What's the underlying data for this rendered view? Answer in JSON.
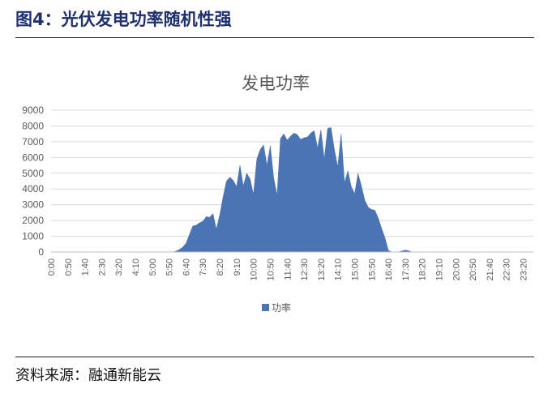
{
  "figure": {
    "title": "图4：光伏发电功率随机性强",
    "source": "资料来源：融通新能云"
  },
  "colors": {
    "series": "#4a74b4",
    "grid": "#d9d9d9",
    "axis_text": "#595959",
    "title_blue": "#1f2f6e"
  },
  "chart_data": {
    "type": "area",
    "title": "发电功率",
    "xlabel": "",
    "ylabel": "",
    "ylim": [
      0,
      9000
    ],
    "yticks": [
      0,
      1000,
      2000,
      3000,
      4000,
      5000,
      6000,
      7000,
      8000,
      9000
    ],
    "xticks": [
      "0:00",
      "0:50",
      "1:40",
      "2:30",
      "3:20",
      "4:10",
      "5:00",
      "5:50",
      "6:40",
      "7:30",
      "8:20",
      "9:10",
      "10:00",
      "10:50",
      "11:40",
      "12:30",
      "13:20",
      "14:10",
      "15:00",
      "15:50",
      "16:40",
      "17:30",
      "18:20",
      "19:10",
      "20:00",
      "20:50",
      "21:40",
      "22:30",
      "23:20"
    ],
    "grid": true,
    "legend_position": "bottom",
    "series": [
      {
        "name": "功率",
        "points": [
          [
            "0:00",
            0
          ],
          [
            "6:00",
            0
          ],
          [
            "6:10",
            50
          ],
          [
            "6:20",
            150
          ],
          [
            "6:30",
            300
          ],
          [
            "6:40",
            550
          ],
          [
            "6:50",
            1100
          ],
          [
            "7:00",
            1650
          ],
          [
            "7:10",
            1700
          ],
          [
            "7:20",
            1850
          ],
          [
            "7:30",
            1950
          ],
          [
            "7:40",
            2250
          ],
          [
            "7:50",
            2200
          ],
          [
            "8:00",
            2450
          ],
          [
            "8:10",
            1450
          ],
          [
            "8:20",
            2350
          ],
          [
            "8:30",
            3500
          ],
          [
            "8:40",
            4500
          ],
          [
            "8:50",
            4750
          ],
          [
            "9:00",
            4550
          ],
          [
            "9:10",
            4150
          ],
          [
            "9:20",
            5500
          ],
          [
            "9:30",
            4200
          ],
          [
            "9:40",
            5000
          ],
          [
            "9:50",
            4650
          ],
          [
            "10:00",
            3650
          ],
          [
            "10:10",
            5900
          ],
          [
            "10:20",
            6500
          ],
          [
            "10:30",
            6800
          ],
          [
            "10:40",
            5500
          ],
          [
            "10:50",
            6750
          ],
          [
            "11:00",
            4700
          ],
          [
            "11:10",
            3600
          ],
          [
            "11:20",
            7200
          ],
          [
            "11:30",
            7500
          ],
          [
            "11:40",
            7100
          ],
          [
            "11:50",
            7350
          ],
          [
            "12:00",
            7550
          ],
          [
            "12:10",
            7450
          ],
          [
            "12:20",
            7150
          ],
          [
            "12:30",
            7250
          ],
          [
            "12:40",
            7300
          ],
          [
            "12:50",
            7550
          ],
          [
            "13:00",
            7700
          ],
          [
            "13:10",
            6600
          ],
          [
            "13:20",
            7750
          ],
          [
            "13:30",
            5900
          ],
          [
            "13:40",
            7850
          ],
          [
            "13:50",
            7900
          ],
          [
            "14:00",
            6500
          ],
          [
            "14:10",
            5400
          ],
          [
            "14:20",
            7500
          ],
          [
            "14:30",
            4400
          ],
          [
            "14:40",
            5150
          ],
          [
            "14:50",
            4150
          ],
          [
            "15:00",
            3700
          ],
          [
            "15:10",
            5000
          ],
          [
            "15:20",
            4200
          ],
          [
            "15:30",
            3300
          ],
          [
            "15:40",
            2850
          ],
          [
            "15:50",
            2700
          ],
          [
            "16:00",
            2650
          ],
          [
            "16:10",
            2150
          ],
          [
            "16:20",
            1500
          ],
          [
            "16:30",
            900
          ],
          [
            "16:40",
            100
          ],
          [
            "16:50",
            0
          ],
          [
            "17:10",
            0
          ],
          [
            "17:20",
            60
          ],
          [
            "17:30",
            120
          ],
          [
            "17:40",
            80
          ],
          [
            "17:50",
            0
          ],
          [
            "23:50",
            0
          ]
        ]
      }
    ]
  }
}
